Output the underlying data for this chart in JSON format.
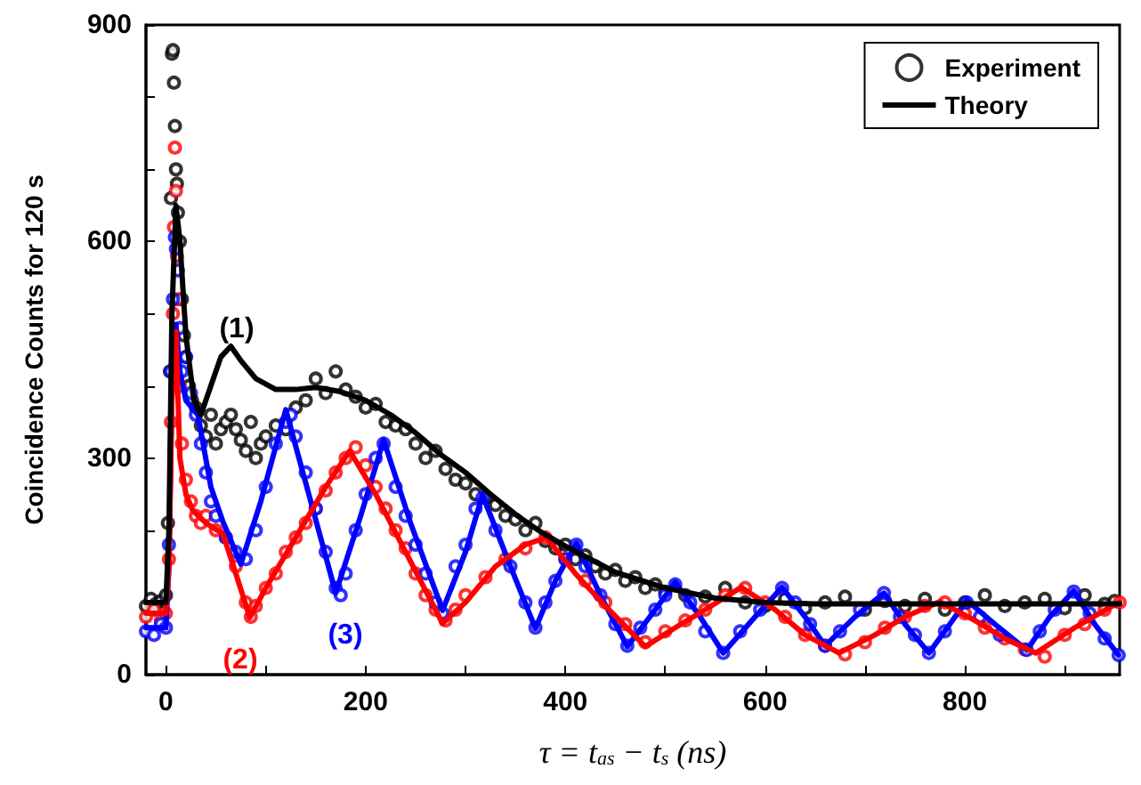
{
  "chart_data": {
    "type": "scatter",
    "xlabel": "τ = t$_{as}$ − t$_{s}$ (ns)",
    "ylabel": "Coincidence Counts for 120 s",
    "xlim": [
      -20,
      955
    ],
    "ylim": [
      0,
      900
    ],
    "xticks": [
      0,
      {
        "value": 100,
        "label": null
      },
      200,
      {
        "value": 300,
        "label": null
      },
      400,
      {
        "value": 500,
        "label": null
      },
      600,
      {
        "value": 700,
        "label": null
      },
      800,
      {
        "value": 900,
        "label": null
      }
    ],
    "yticks": [
      0,
      {
        "value": 100,
        "label": null
      },
      {
        "value": 200,
        "label": null
      },
      300,
      {
        "value": 400,
        "label": null
      },
      {
        "value": 500,
        "label": null
      },
      600,
      {
        "value": 700,
        "label": null
      },
      {
        "value": 800,
        "label": null
      },
      900
    ],
    "grid": false,
    "legend": "top right",
    "annotations": [
      "(1)",
      "(2)",
      "(3)"
    ],
    "series": [
      {
        "name": "Experiment",
        "marker": "circle",
        "color": "#000000",
        "x": [
          -20,
          -15,
          -10,
          -5,
          0,
          2,
          4,
          5,
          6,
          7,
          8,
          9,
          10,
          11,
          12,
          14,
          16,
          18,
          20,
          23,
          26,
          30,
          35,
          40,
          45,
          50,
          55,
          60,
          65,
          70,
          75,
          80,
          85,
          90,
          95,
          100,
          110,
          120,
          130,
          140,
          150,
          160,
          170,
          180,
          190,
          200,
          210,
          220,
          230,
          240,
          250,
          260,
          270,
          280,
          290,
          300,
          310,
          320,
          330,
          340,
          350,
          360,
          370,
          380,
          390,
          400,
          410,
          420,
          430,
          440,
          450,
          460,
          470,
          480,
          490,
          500,
          520,
          540,
          560,
          580,
          600,
          620,
          640,
          660,
          680,
          700,
          720,
          740,
          760,
          780,
          800,
          820,
          840,
          860,
          880,
          900,
          920,
          940,
          950
        ],
        "values": [
          95,
          105,
          98,
          102,
          110,
          210,
          420,
          660,
          860,
          865,
          820,
          760,
          700,
          680,
          640,
          600,
          520,
          470,
          440,
          400,
          380,
          370,
          345,
          330,
          360,
          320,
          340,
          350,
          360,
          340,
          325,
          310,
          350,
          300,
          320,
          330,
          345,
          340,
          370,
          380,
          410,
          390,
          420,
          395,
          385,
          370,
          375,
          350,
          345,
          340,
          320,
          300,
          310,
          285,
          270,
          265,
          250,
          245,
          235,
          220,
          215,
          200,
          210,
          185,
          175,
          180,
          160,
          165,
          150,
          140,
          145,
          130,
          135,
          120,
          125,
          115,
          110,
          108,
          120,
          100,
          95,
          105,
          92,
          100,
          108,
          90,
          102,
          95,
          105,
          90,
          100,
          110,
          95,
          100,
          105,
          92,
          110,
          98,
          102
        ]
      },
      {
        "marker": "circle",
        "color": "#ff0000",
        "x": [
          -20,
          -12,
          -5,
          0,
          3,
          5,
          7,
          8,
          9,
          10,
          11,
          12,
          14,
          16,
          20,
          25,
          30,
          35,
          40,
          50,
          60,
          70,
          80,
          85,
          90,
          100,
          110,
          120,
          130,
          140,
          150,
          160,
          170,
          180,
          190,
          200,
          210,
          220,
          230,
          240,
          250,
          260,
          270,
          280,
          290,
          300,
          320,
          340,
          360,
          380,
          400,
          420,
          440,
          460,
          480,
          500,
          520,
          540,
          560,
          580,
          600,
          620,
          640,
          660,
          680,
          700,
          720,
          740,
          760,
          780,
          800,
          820,
          840,
          860,
          880,
          900,
          920,
          940,
          955
        ],
        "values": [
          80,
          90,
          75,
          85,
          160,
          350,
          500,
          620,
          730,
          670,
          580,
          520,
          400,
          320,
          270,
          240,
          220,
          210,
          220,
          200,
          190,
          150,
          100,
          80,
          95,
          120,
          140,
          170,
          190,
          210,
          230,
          255,
          280,
          300,
          315,
          290,
          260,
          230,
          200,
          175,
          140,
          110,
          90,
          75,
          90,
          110,
          135,
          160,
          175,
          190,
          160,
          130,
          100,
          70,
          45,
          60,
          75,
          90,
          110,
          120,
          100,
          80,
          55,
          40,
          28,
          45,
          65,
          80,
          95,
          100,
          85,
          65,
          50,
          35,
          25,
          55,
          70,
          90,
          100
        ]
      },
      {
        "marker": "circle",
        "color": "#0000ff",
        "x": [
          -20,
          -12,
          -5,
          0,
          3,
          5,
          7,
          9,
          10,
          12,
          14,
          16,
          20,
          25,
          30,
          35,
          40,
          45,
          50,
          60,
          70,
          80,
          90,
          100,
          110,
          120,
          125,
          130,
          140,
          150,
          160,
          170,
          175,
          180,
          190,
          200,
          210,
          218,
          230,
          240,
          250,
          260,
          270,
          277,
          290,
          300,
          310,
          317,
          330,
          345,
          360,
          370,
          380,
          390,
          400,
          411,
          420,
          435,
          450,
          462,
          475,
          490,
          500,
          510,
          525,
          540,
          558,
          575,
          595,
          617,
          630,
          645,
          660,
          675,
          695,
          719,
          735,
          750,
          764,
          780,
          802,
          815,
          835,
          862,
          875,
          890,
          909,
          925,
          940,
          954
        ],
        "values": [
          60,
          55,
          70,
          65,
          180,
          420,
          520,
          606,
          590,
          560,
          480,
          420,
          440,
          390,
          360,
          320,
          280,
          240,
          220,
          190,
          170,
          160,
          200,
          260,
          320,
          350,
          360,
          330,
          280,
          230,
          170,
          120,
          110,
          140,
          200,
          250,
          300,
          320,
          260,
          220,
          180,
          140,
          100,
          85,
          150,
          180,
          230,
          245,
          200,
          150,
          100,
          65,
          100,
          130,
          160,
          180,
          150,
          110,
          70,
          40,
          65,
          90,
          110,
          125,
          100,
          60,
          30,
          60,
          90,
          120,
          100,
          70,
          40,
          60,
          90,
          113,
          80,
          55,
          30,
          60,
          100,
          80,
          55,
          34,
          60,
          90,
          115,
          85,
          50,
          27
        ]
      },
      {
        "name": "Theory",
        "type": "line",
        "marker": "none",
        "color": "#000000",
        "x": [
          -20,
          -10,
          0,
          3,
          6,
          10,
          14,
          20,
          28,
          35,
          45,
          55,
          65,
          75,
          90,
          110,
          130,
          150,
          175,
          200,
          225,
          250,
          275,
          300,
          325,
          350,
          375,
          400,
          425,
          450,
          500,
          550,
          600,
          650,
          700,
          750,
          800,
          850,
          900,
          955
        ],
        "values": [
          100,
          100,
          100,
          200,
          500,
          650,
          600,
          470,
          380,
          360,
          400,
          440,
          455,
          435,
          410,
          395,
          395,
          398,
          392,
          380,
          360,
          335,
          305,
          280,
          250,
          222,
          198,
          178,
          160,
          142,
          120,
          106,
          100,
          98,
          98,
          98,
          98,
          98,
          98,
          98
        ]
      },
      {
        "type": "line",
        "marker": "none",
        "color": "#ff0000",
        "x": [
          -20,
          0,
          3,
          6,
          10,
          14,
          20,
          27,
          40,
          57,
          70,
          84,
          100,
          130,
          160,
          184,
          210,
          240,
          277,
          300,
          330,
          360,
          381,
          410,
          440,
          480,
          510,
          540,
          576,
          610,
          640,
          674,
          710,
          740,
          775,
          810,
          840,
          871,
          910,
          955
        ],
        "values": [
          85,
          85,
          150,
          380,
          475,
          300,
          250,
          227,
          210,
          195,
          140,
          79,
          120,
          190,
          260,
          310,
          250,
          170,
          71,
          100,
          150,
          180,
          190,
          140,
          95,
          39,
          65,
          90,
          121,
          90,
          55,
          30,
          55,
          80,
          101,
          75,
          50,
          30,
          65,
          101
        ]
      },
      {
        "type": "line",
        "marker": "none",
        "color": "#0000ff",
        "x": [
          -20,
          0,
          3,
          6,
          10,
          14,
          20,
          32,
          45,
          57,
          75,
          95,
          120,
          145,
          170,
          195,
          218,
          245,
          277,
          300,
          317,
          345,
          370,
          390,
          411,
          435,
          462,
          490,
          510,
          535,
          558,
          590,
          617,
          640,
          660,
          690,
          719,
          740,
          764,
          785,
          802,
          830,
          862,
          885,
          909,
          930,
          954
        ],
        "values": [
          65,
          65,
          150,
          400,
          485,
          420,
          380,
          360,
          260,
          212,
          153,
          240,
          367,
          240,
          113,
          220,
          325,
          210,
          89,
          170,
          249,
          150,
          64,
          130,
          182,
          110,
          39,
          90,
          128,
          80,
          30,
          80,
          121,
          80,
          40,
          80,
          113,
          70,
          30,
          70,
          103,
          70,
          34,
          80,
          116,
          70,
          27
        ]
      }
    ]
  }
}
